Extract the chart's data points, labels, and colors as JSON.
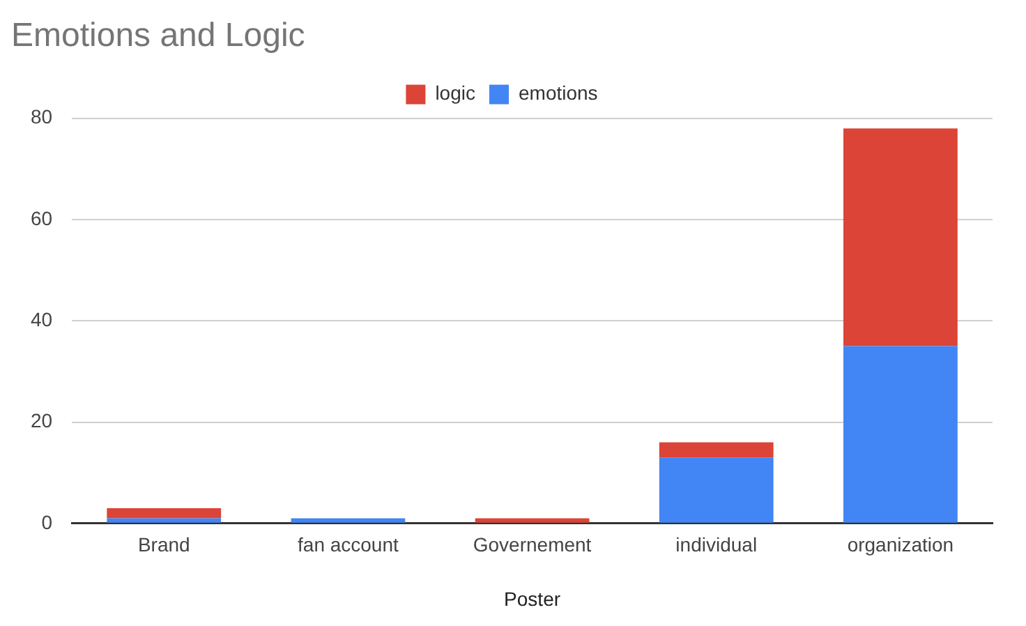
{
  "chart_data": {
    "type": "bar",
    "title": "Emotions and Logic",
    "xlabel": "Poster",
    "categories": [
      "Brand",
      "fan account",
      "Governement",
      "individual",
      "organization"
    ],
    "series": [
      {
        "name": "emotions",
        "color": "#4285f4",
        "values": [
          1,
          1,
          0,
          13,
          35
        ]
      },
      {
        "name": "logic",
        "color": "#db4437",
        "values": [
          2,
          0,
          1,
          3,
          43
        ]
      }
    ],
    "stacked": true,
    "ylim": [
      0,
      80
    ],
    "yticks": [
      0,
      20,
      40,
      60,
      80
    ],
    "grid": "y",
    "legend": "top"
  }
}
